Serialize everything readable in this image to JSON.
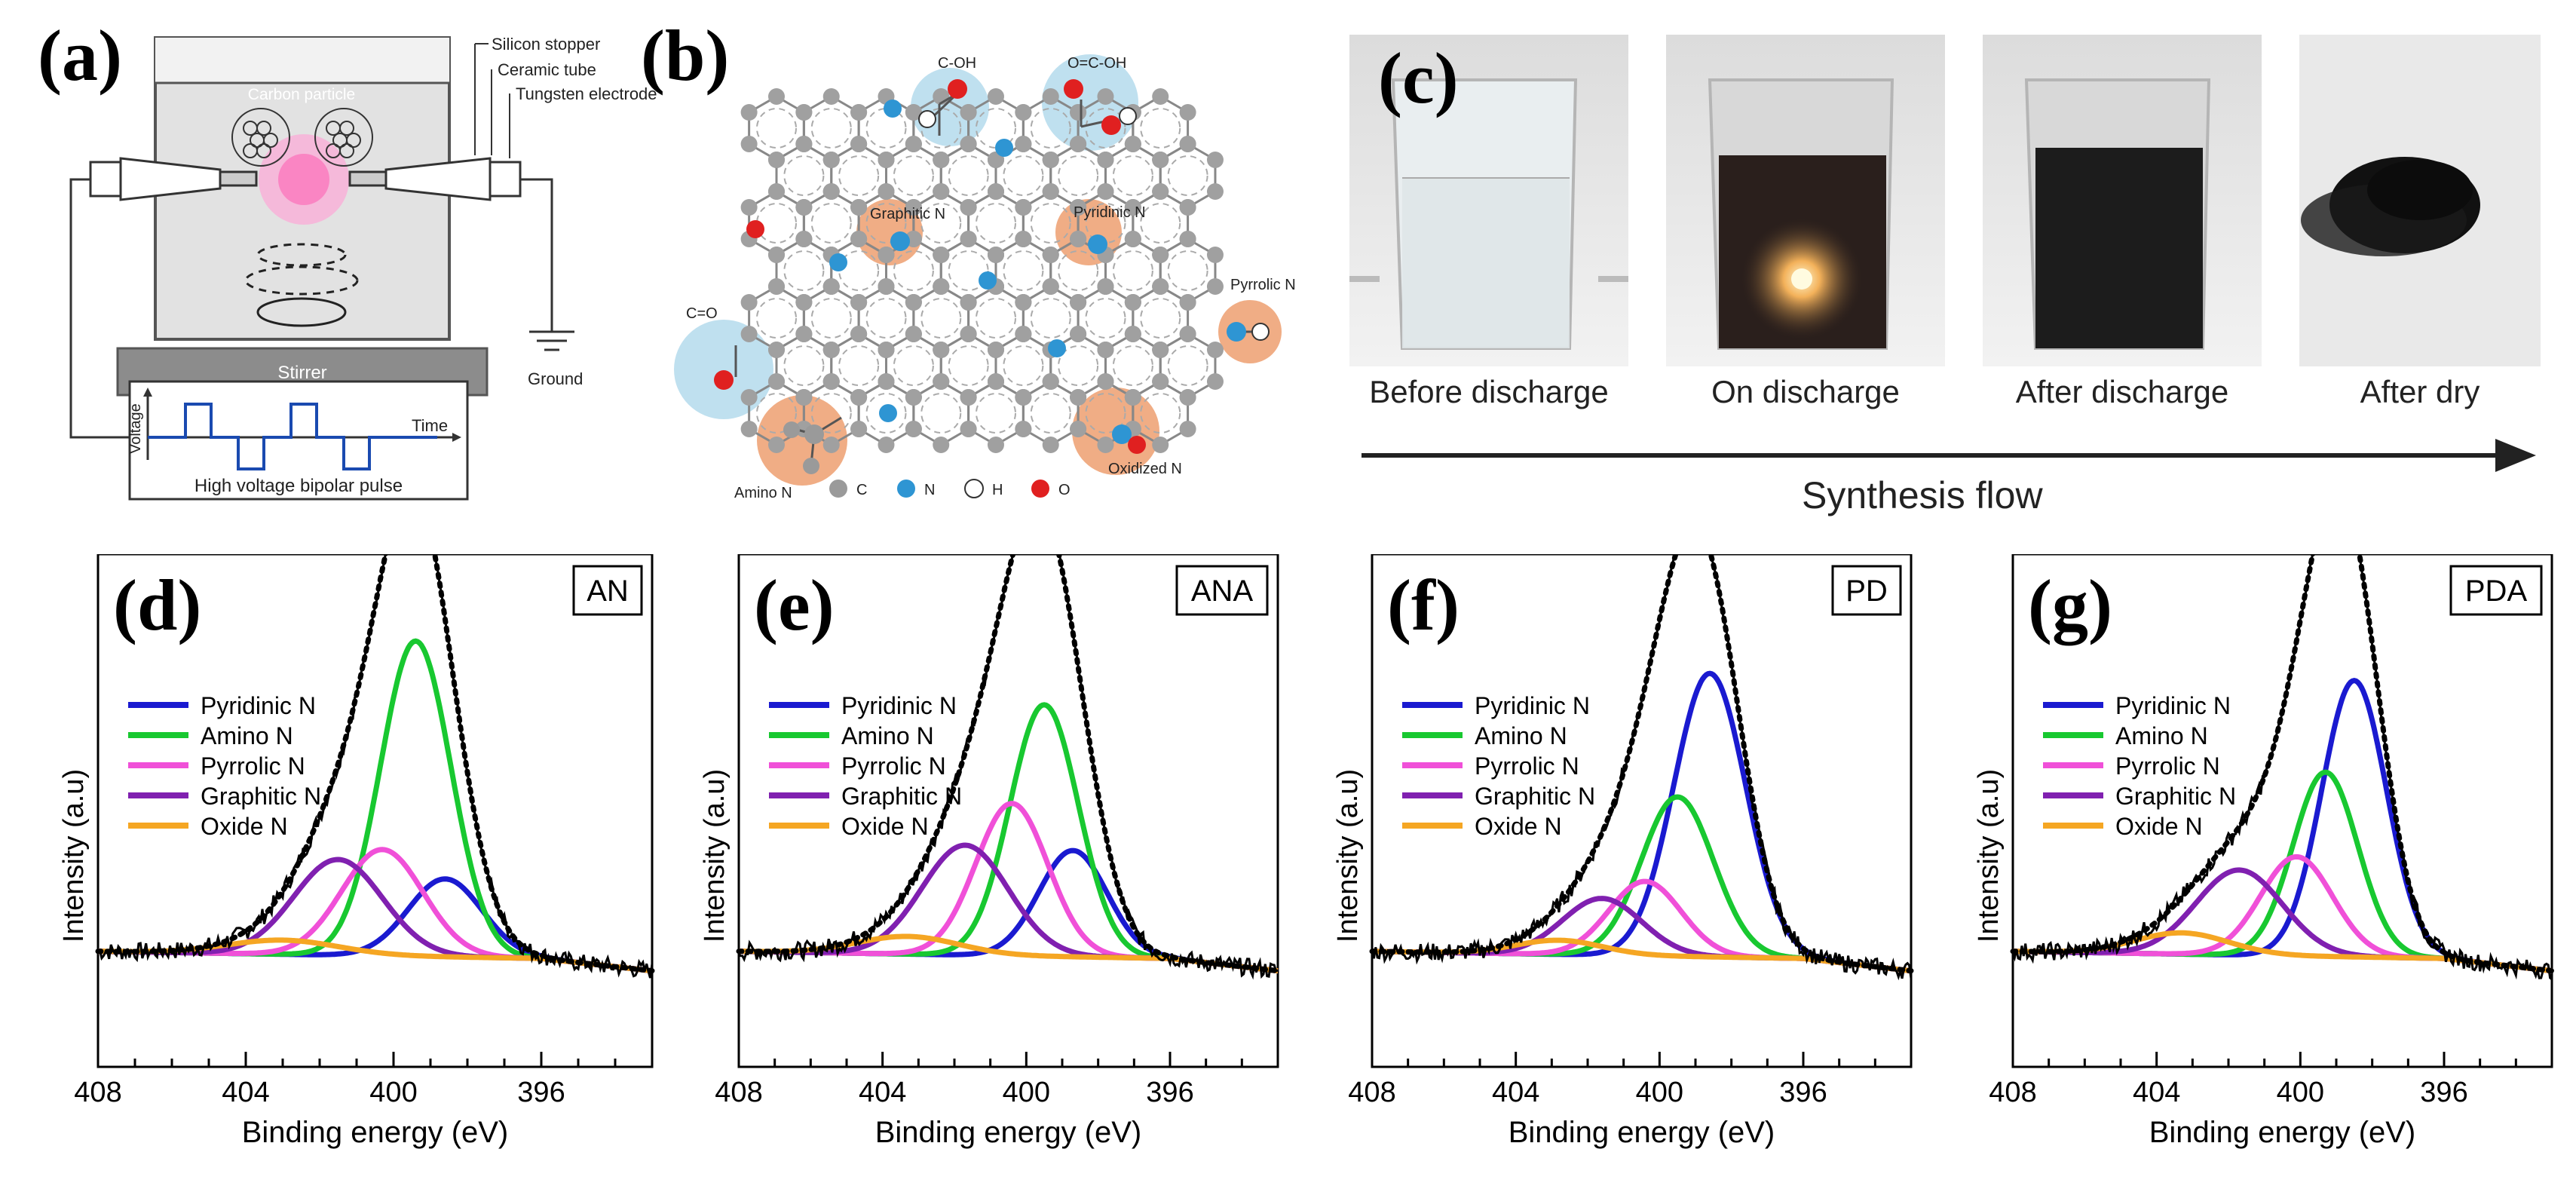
{
  "panels": {
    "a": {
      "letter": "(a)",
      "labels": {
        "carbon_particle": "Carbon particle",
        "silicon_stopper": "Silicon stopper",
        "ceramic_tube": "Ceramic tube",
        "tungsten_electrode": "Tungsten electrode",
        "stirrer": "Stirrer",
        "ground": "Ground",
        "voltage": "Voltage",
        "time": "Time",
        "pulse": "High voltage bipolar pulse"
      }
    },
    "b": {
      "letter": "(b)",
      "labels": {
        "coh": "C-OH",
        "ococh": "O=C-OH",
        "graphitic_n": "Graphitic N",
        "pyridinic_n": "Pyridinic N",
        "pyrrolic_n": "Pyrrolic N",
        "co": "C=O",
        "amino_n": "Amino N",
        "oxidized_n": "Oxidized N"
      },
      "legend": [
        {
          "symbol": "C",
          "color": "#9a9a9a"
        },
        {
          "symbol": "N",
          "color": "#2e95d3"
        },
        {
          "symbol": "H",
          "color": "#ffffff"
        },
        {
          "symbol": "O",
          "color": "#e02020"
        }
      ]
    },
    "c": {
      "letter": "(c)",
      "photos": [
        {
          "caption": "Before discharge"
        },
        {
          "caption": "On discharge"
        },
        {
          "caption": "After discharge"
        },
        {
          "caption": "After dry"
        }
      ],
      "flow_label": "Synthesis flow"
    }
  },
  "chart_data": [
    {
      "type": "line",
      "panel": "(d)",
      "tag": "AN",
      "xlabel": "Binding energy (eV)",
      "ylabel": "Intensity (a.u)",
      "xlim": [
        408,
        393
      ],
      "xticks": [
        408,
        404,
        400,
        396
      ],
      "legend": [
        "Pyridinic N",
        "Amino N",
        "Pyrrolic N",
        "Graphitic N",
        "Oxide N"
      ],
      "components": [
        {
          "name": "Pyridinic N",
          "center": 398.6,
          "height": 0.22,
          "width": 1.0
        },
        {
          "name": "Amino N",
          "center": 399.4,
          "height": 0.89,
          "width": 0.95
        },
        {
          "name": "Pyrrolic N",
          "center": 400.3,
          "height": 0.3,
          "width": 1.1
        },
        {
          "name": "Graphitic N",
          "center": 401.5,
          "height": 0.27,
          "width": 1.2
        },
        {
          "name": "Oxide N",
          "center": 403.0,
          "height": 0.04,
          "width": 1.5
        }
      ]
    },
    {
      "type": "line",
      "panel": "(e)",
      "tag": "ANA",
      "xlabel": "Binding energy (eV)",
      "ylabel": "Intensity (a.u)",
      "xlim": [
        408,
        393
      ],
      "xticks": [
        408,
        404,
        400,
        396
      ],
      "legend": [
        "Pyridinic N",
        "Amino N",
        "Pyrrolic N",
        "Graphitic N",
        "Oxide N"
      ],
      "components": [
        {
          "name": "Pyridinic N",
          "center": 398.7,
          "height": 0.3,
          "width": 0.95
        },
        {
          "name": "Amino N",
          "center": 399.5,
          "height": 0.71,
          "width": 0.95
        },
        {
          "name": "Pyrrolic N",
          "center": 400.4,
          "height": 0.43,
          "width": 1.0
        },
        {
          "name": "Graphitic N",
          "center": 401.7,
          "height": 0.31,
          "width": 1.2
        },
        {
          "name": "Oxide N",
          "center": 403.3,
          "height": 0.05,
          "width": 1.4
        }
      ]
    },
    {
      "type": "line",
      "panel": "(f)",
      "tag": "PD",
      "xlabel": "Binding energy (eV)",
      "ylabel": "Intensity (a.u)",
      "xlim": [
        408,
        393
      ],
      "xticks": [
        408,
        404,
        400,
        396
      ],
      "legend": [
        "Pyridinic N",
        "Amino N",
        "Pyrrolic N",
        "Graphitic N",
        "Oxide N"
      ],
      "components": [
        {
          "name": "Pyridinic N",
          "center": 398.6,
          "height": 0.8,
          "width": 1.0
        },
        {
          "name": "Amino N",
          "center": 399.5,
          "height": 0.45,
          "width": 1.0
        },
        {
          "name": "Pyrrolic N",
          "center": 400.4,
          "height": 0.21,
          "width": 1.0
        },
        {
          "name": "Graphitic N",
          "center": 401.6,
          "height": 0.16,
          "width": 1.1
        },
        {
          "name": "Oxide N",
          "center": 402.8,
          "height": 0.04,
          "width": 1.2
        }
      ]
    },
    {
      "type": "line",
      "panel": "(g)",
      "tag": "PDA",
      "xlabel": "Binding energy (eV)",
      "ylabel": "Intensity (a.u)",
      "xlim": [
        408,
        393
      ],
      "xticks": [
        408,
        404,
        400,
        396
      ],
      "legend": [
        "Pyridinic N",
        "Amino N",
        "Pyrrolic N",
        "Graphitic N",
        "Oxide N"
      ],
      "components": [
        {
          "name": "Pyridinic N",
          "center": 398.5,
          "height": 0.78,
          "width": 0.9
        },
        {
          "name": "Amino N",
          "center": 399.3,
          "height": 0.52,
          "width": 0.9
        },
        {
          "name": "Pyrrolic N",
          "center": 400.1,
          "height": 0.28,
          "width": 1.0
        },
        {
          "name": "Graphitic N",
          "center": 401.7,
          "height": 0.24,
          "width": 1.2
        },
        {
          "name": "Oxide N",
          "center": 403.3,
          "height": 0.06,
          "width": 1.3
        }
      ]
    }
  ],
  "series_colors": {
    "Pyridinic N": "#1a1ad0",
    "Amino N": "#18c830",
    "Pyrrolic N": "#f050d8",
    "Graphitic N": "#8020b0",
    "Oxide N": "#f5a623"
  }
}
